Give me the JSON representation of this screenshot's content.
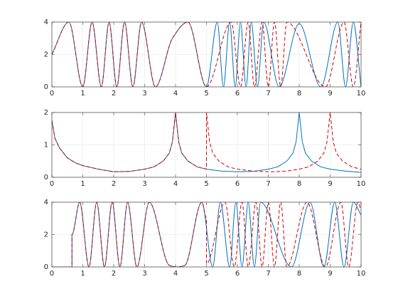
{
  "chart_data": [
    {
      "type": "line",
      "smooth": true,
      "grid": true,
      "xlim": [
        0,
        10
      ],
      "ylim": [
        0,
        4
      ],
      "xticks": [
        0,
        1,
        2,
        3,
        4,
        5,
        6,
        7,
        8,
        9,
        10
      ],
      "yticks": [
        0,
        2,
        4
      ],
      "series": [
        {
          "color": "#0072bd",
          "dash": false,
          "x": [
            0,
            0.55,
            1.0,
            1.3,
            1.6,
            1.85,
            2.1,
            2.35,
            2.62,
            2.9,
            3.35,
            3.9,
            4.4,
            5.0,
            5.35,
            5.55,
            5.75,
            5.93,
            6.1,
            6.28,
            6.45,
            6.65,
            6.85,
            7.35,
            8.0,
            8.7,
            9.25,
            9.5,
            9.75,
            10
          ],
          "values": [
            2,
            4,
            0,
            4,
            0,
            4,
            0,
            4,
            0,
            4,
            0,
            3,
            4,
            0,
            4,
            0,
            4,
            0,
            4,
            0,
            4,
            0,
            4,
            0,
            3.9,
            0,
            4,
            0,
            4,
            0
          ]
        },
        {
          "color": "#d00000",
          "dash": true,
          "x": [
            0,
            0.55,
            1.0,
            1.3,
            1.6,
            1.85,
            2.1,
            2.35,
            2.62,
            2.9,
            3.35,
            3.9,
            4.4,
            5.0,
            5.8,
            6.1,
            6.35,
            6.55,
            6.8,
            7.0,
            7.2,
            7.4,
            7.6,
            8.85,
            9.45,
            9.75,
            10
          ],
          "values": [
            2,
            4,
            0,
            4,
            0,
            4,
            0,
            4,
            0,
            4,
            0,
            3,
            4,
            0,
            4,
            0,
            4,
            0,
            4,
            0,
            4,
            0,
            4,
            0,
            4,
            0,
            4
          ]
        }
      ]
    },
    {
      "type": "line",
      "smooth": false,
      "grid": true,
      "xlim": [
        0,
        10
      ],
      "ylim": [
        0,
        2
      ],
      "xticks": [
        0,
        1,
        2,
        3,
        4,
        5,
        6,
        7,
        8,
        9,
        10
      ],
      "yticks": [
        0,
        1,
        2
      ],
      "series": [
        {
          "color": "#0072bd",
          "dash": false,
          "x": [
            0,
            0.1,
            0.25,
            0.5,
            0.75,
            1,
            1.5,
            2,
            2.5,
            3,
            3.3,
            3.6,
            3.8,
            3.9,
            4,
            4.1,
            4.2,
            4.4,
            4.7,
            5,
            5.5,
            6,
            6.5,
            7,
            7.3,
            7.6,
            7.8,
            7.9,
            8,
            8.1,
            8.2,
            8.4,
            8.7,
            9,
            9.5,
            10
          ],
          "values": [
            1.75,
            1.2,
            0.9,
            0.6,
            0.45,
            0.36,
            0.25,
            0.17,
            0.18,
            0.25,
            0.32,
            0.5,
            0.75,
            1.1,
            2,
            1.1,
            0.75,
            0.5,
            0.32,
            0.25,
            0.19,
            0.17,
            0.18,
            0.25,
            0.32,
            0.5,
            0.75,
            1.1,
            2,
            1.1,
            0.75,
            0.5,
            0.32,
            0.25,
            0.19,
            0.15
          ]
        },
        {
          "color": "#d00000",
          "dash": true,
          "x": [
            0,
            0.1,
            0.25,
            0.5,
            0.75,
            1,
            1.5,
            2,
            2.5,
            3,
            3.3,
            3.6,
            3.8,
            3.9,
            4,
            4.1,
            4.2,
            4.4,
            4.7,
            5,
            5,
            5.1,
            5.2,
            5.4,
            5.7,
            6,
            6.5,
            7,
            7.5,
            8,
            8.3,
            8.6,
            8.8,
            8.9,
            9,
            9.1,
            9.2,
            9.4,
            9.7,
            10
          ],
          "values": [
            1.75,
            1.2,
            0.9,
            0.6,
            0.45,
            0.36,
            0.25,
            0.17,
            0.18,
            0.25,
            0.32,
            0.5,
            0.75,
            1.1,
            2,
            1.1,
            0.75,
            0.5,
            0.32,
            0.25,
            2,
            1.1,
            0.75,
            0.5,
            0.32,
            0.25,
            0.19,
            0.17,
            0.18,
            0.25,
            0.32,
            0.5,
            0.75,
            1.1,
            2,
            1.1,
            0.75,
            0.5,
            0.32,
            0.25
          ]
        }
      ]
    },
    {
      "type": "line",
      "smooth": true,
      "grid": true,
      "xlim": [
        0,
        10
      ],
      "ylim": [
        0,
        4
      ],
      "xticks": [
        0,
        1,
        2,
        3,
        4,
        5,
        6,
        7,
        8,
        9,
        10
      ],
      "yticks": [
        0,
        2,
        4
      ],
      "series": [
        {
          "color": "#0072bd",
          "dash": false,
          "x": [
            0,
            0.65,
            0.65,
            0.9,
            1.2,
            1.45,
            1.7,
            1.95,
            2.2,
            2.45,
            2.75,
            3.15,
            3.8,
            4.05,
            4.3,
            4.85,
            5.2,
            5.45,
            5.75,
            5.95,
            6.15,
            6.35,
            6.55,
            6.75,
            7.75,
            8.35,
            8.8,
            9.15,
            9.45,
            9.75,
            10
          ],
          "values": [
            0,
            0,
            2,
            4,
            0,
            4,
            0,
            4,
            0,
            4,
            0,
            4,
            0.1,
            0,
            0.1,
            4,
            0,
            4,
            0,
            4,
            0,
            4,
            0,
            4,
            0,
            4,
            0,
            4,
            0,
            4,
            3.2
          ]
        },
        {
          "color": "#d00000",
          "dash": true,
          "x": [
            0,
            0.65,
            0.65,
            0.9,
            1.2,
            1.45,
            1.7,
            1.95,
            2.2,
            2.45,
            2.75,
            3.15,
            3.8,
            4.05,
            4.3,
            4.85,
            5.0,
            5.0,
            5.6,
            5.9,
            6.15,
            6.35,
            6.6,
            6.8,
            7.0,
            7.2,
            7.4,
            7.6,
            8.25,
            8.85,
            9.35,
            9.6,
            9.9,
            10
          ],
          "values": [
            0,
            0,
            2,
            4,
            0,
            4,
            0,
            4,
            0,
            4,
            0,
            4,
            0.1,
            0,
            0.1,
            4,
            3,
            0.2,
            4,
            0,
            4,
            0,
            4,
            0,
            4,
            0,
            4,
            0,
            4,
            0,
            4,
            0,
            4,
            3.5
          ]
        }
      ]
    }
  ]
}
